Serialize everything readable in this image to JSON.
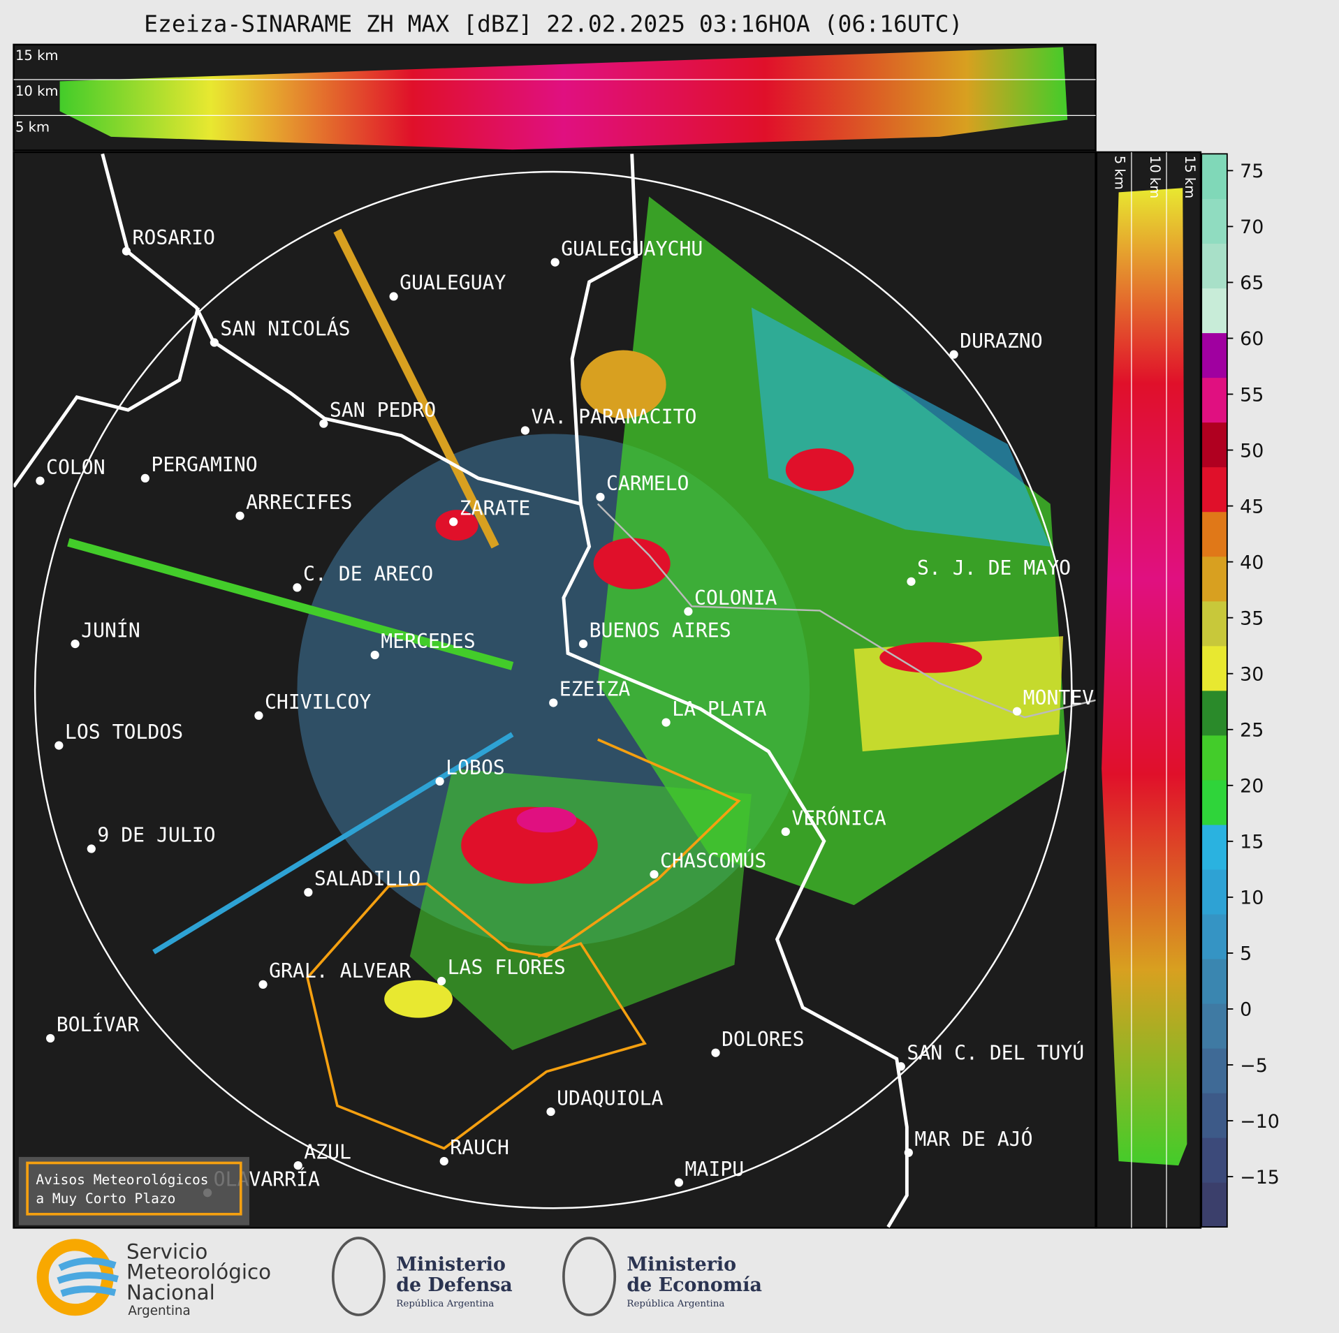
{
  "title": "Ezeiza-SINARAME ZH MAX [dBZ] 22.02.2025 03:16HOA (06:16UTC)",
  "top_panel": {
    "labels": [
      "15 km",
      "10 km",
      "5 km"
    ]
  },
  "side_panel": {
    "labels": [
      "5 km",
      "10 km",
      "15 km"
    ]
  },
  "cities": [
    "ROSARIO",
    "GUALEGUAYCHU",
    "GUALEGUAY",
    "SAN NICOLÁS",
    "DURAZNO",
    "SAN PEDRO",
    "VA. PARANACITO",
    "COLON",
    "PERGAMINO",
    "CARMELO",
    "ARRECIFES",
    "ZARATE",
    "C. DE ARECO",
    "S. J. DE MAYO",
    "COLONIA",
    "JUNÍN",
    "BUENOS AIRES",
    "MERCEDES",
    "EZEIZA",
    "LA PLATA",
    "MONTEVIDEO",
    "CHIVILCOY",
    "LOS TOLDOS",
    "LOBOS",
    "VERÓNICA",
    "9 DE JULIO",
    "CHASCOMÚS",
    "SALADILLO",
    "GRAL. ALVEAR",
    "LAS FLORES",
    "BOLÍVAR",
    "DOLORES",
    "SAN C. DEL TUYÚ",
    "UDAQUIOLA",
    "MAR DE AJÓ",
    "RAUCH",
    "AZUL",
    "OLAVARRÍA",
    "MAIPU"
  ],
  "colorbar": {
    "lim": [
      -19.5,
      76.5
    ],
    "ticks": [
      {
        "value": -15,
        "label": "−15"
      },
      {
        "value": -10,
        "label": "−10"
      },
      {
        "value": -5,
        "label": "−5"
      },
      0,
      5,
      10,
      15,
      20,
      25,
      30,
      35,
      40,
      45,
      50,
      55,
      60,
      65,
      70,
      75
    ],
    "colors": [
      "#3b3f6b",
      "#3c4a7a",
      "#3d5a88",
      "#3f6a96",
      "#3f7aa3",
      "#3a86b0",
      "#3594c4",
      "#2ea2d4",
      "#2ab2e0",
      "#2fd43a",
      "#43cc2a",
      "#2a8a2a",
      "#e8e830",
      "#c8c83a",
      "#d8a020",
      "#e07818",
      "#e0102a",
      "#b00020",
      "#e01080",
      "#a000a0",
      "#c8ecd8",
      "#a8e0c8",
      "#90dcc0",
      "#80d8b8"
    ]
  },
  "warning_box": {
    "lines": [
      "Avisos Meteorológicos",
      "a Muy Corto Plazo"
    ]
  },
  "logos": {
    "smn": [
      "Servicio",
      "Meteorológico",
      "Nacional",
      "Argentina"
    ],
    "defensa": [
      "Ministerio",
      "de Defensa",
      "República Argentina"
    ],
    "economia": [
      "Ministerio",
      "de Economía",
      "República Argentina"
    ]
  }
}
